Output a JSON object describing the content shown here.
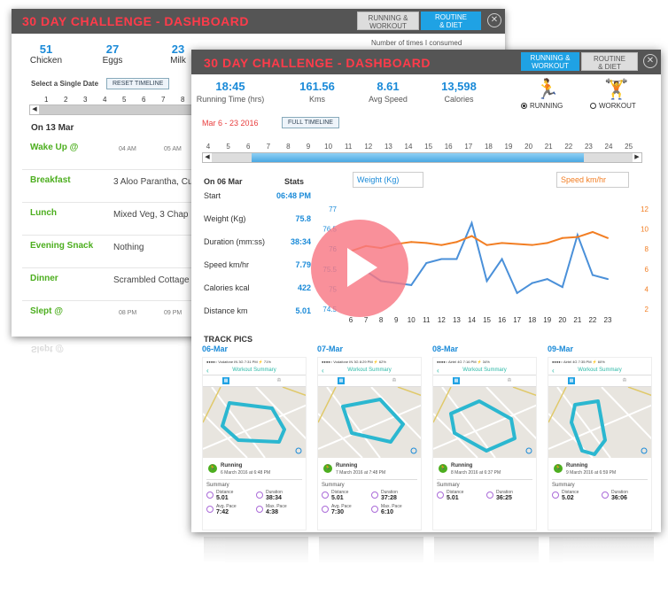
{
  "back": {
    "title": "30 DAY CHALLENGE - DASHBOARD",
    "toggle": {
      "running": "RUNNING &\nWORKOUT",
      "routine": "ROUTINE\n& DIET"
    },
    "close": "✕",
    "counts": [
      {
        "value": "51",
        "label": "Chicken"
      },
      {
        "value": "27",
        "label": "Eggs"
      },
      {
        "value": "23",
        "label": "Milk"
      }
    ],
    "consumed_label": "Number of times I consumed",
    "select_date": "Select a Single Date",
    "reset_button": "RESET TIMELINE",
    "timeline_numbers": [
      "1",
      "2",
      "3",
      "4",
      "5",
      "6",
      "7",
      "8"
    ],
    "date_heading": "On 13 Mar",
    "meals": [
      {
        "name": "Wake Up @",
        "value": "",
        "time1": "04 AM",
        "time2": "05 AM"
      },
      {
        "name": "Breakfast",
        "value": "3 Aloo Parantha, Cu"
      },
      {
        "name": "Lunch",
        "value": "Mixed Veg, 3 Chap"
      },
      {
        "name": "Evening Snack",
        "value": "Nothing"
      },
      {
        "name": "Dinner",
        "value": "Scrambled Cottage"
      },
      {
        "name": "Slept @",
        "value": "",
        "time1": "08 PM",
        "time2": "09 PM"
      }
    ],
    "reflected_label": "Slept @"
  },
  "front": {
    "title": "30 DAY CHALLENGE - DASHBOARD",
    "toggle": {
      "running": "RUNNING &\nWORKOUT",
      "routine": "ROUTINE\n& DIET"
    },
    "close": "✕",
    "stats": [
      {
        "value": "18:45",
        "label": "Running Time (hrs)"
      },
      {
        "value": "161.56",
        "label": "Kms"
      },
      {
        "value": "8.61",
        "label": "Avg Speed"
      },
      {
        "value": "13,598",
        "label": "Calories"
      }
    ],
    "modes": {
      "running": "RUNNING",
      "workout": "WORKOUT",
      "running_icon": "runner-icon",
      "workout_icon": "weightlifter-icon"
    },
    "date_range": "Mar 6 - 23 2016",
    "full_timeline_button": "FULL TIMELINE",
    "timeline_numbers": [
      "4",
      "5",
      "6",
      "7",
      "8",
      "9",
      "10",
      "11",
      "12",
      "13",
      "14",
      "15",
      "16",
      "17",
      "18",
      "19",
      "20",
      "21",
      "22",
      "23",
      "24",
      "25"
    ],
    "day_stats": {
      "heading": "On 06 Mar",
      "stats_heading": "Stats",
      "rows": [
        {
          "label": "Start",
          "value": "06:48 PM"
        },
        {
          "label": "Weight (Kg)",
          "value": "75.8"
        },
        {
          "label": "Duration (mm:ss)",
          "value": "38:34"
        },
        {
          "label": "Speed km/hr",
          "value": "7.79"
        },
        {
          "label": "Calories kcal",
          "value": "422"
        },
        {
          "label": "Distance km",
          "value": "5.01"
        }
      ]
    },
    "weight_selector": "Weight (Kg)",
    "speed_selector": "Speed km/hr",
    "track_pics_label": "TRACK PICS",
    "pics": [
      {
        "date": "06-Mar",
        "status": "●●●●○ Vodafone IN  3G    7:31 PM     ⚡ 71%",
        "title": "Workout Summary",
        "run_date": "6 March 2016 at 6:48 PM",
        "distance": "5.01",
        "duration": "38:34",
        "avg_pace": "7:42",
        "max_pace": "4:38"
      },
      {
        "date": "07-Mar",
        "status": "●●●●○ Vodafone IN  3G    8:29 PM     ⚡ 62%",
        "title": "Workout Summary",
        "run_date": "7 March 2016 at 7:48 PM",
        "distance": "5.01",
        "duration": "37:28",
        "avg_pace": "7:30",
        "max_pace": "6:10"
      },
      {
        "date": "08-Mar",
        "status": "●●●●○ Airtel  4G    7:16 PM    ⚡ 34%",
        "title": "Workout Summary",
        "run_date": "8 March 2016 at 6:37 PM",
        "distance": "5.01",
        "duration": "36:25"
      },
      {
        "date": "09-Mar",
        "status": "●●●●○ Airtel  4G    7:35 PM    ⚡ 60%",
        "title": "Workout Summary",
        "run_date": "9 March 2016 at 6:59 PM",
        "distance": "5.02",
        "duration": "36:06"
      }
    ],
    "pic_labels": {
      "running": "Running",
      "summary": "Summary",
      "distance": "Distance",
      "duration": "Duration",
      "avg_pace": "Avg. Pace",
      "max_pace": "Max. Pace",
      "unit_km": "km",
      "unit_min": "min/km"
    }
  },
  "colors": {
    "accent_red": "#ff3b4a",
    "blue": "#1a8ad8",
    "orange": "#f27e23",
    "green": "#4cae1e",
    "teal": "#29b8a6",
    "play": "#f87884"
  },
  "chart_data": {
    "type": "line",
    "x": [
      6,
      7,
      8,
      9,
      10,
      11,
      12,
      13,
      14,
      15,
      16,
      17,
      18,
      19,
      20,
      21,
      22,
      23
    ],
    "series": [
      {
        "name": "Weight (Kg)",
        "axis": "left",
        "color": "#4a90d9",
        "values": [
          75.8,
          75.45,
          75.2,
          75.15,
          75.1,
          75.65,
          75.75,
          75.75,
          76.65,
          75.2,
          75.75,
          74.9,
          75.15,
          75.25,
          75.05,
          76.35,
          75.35,
          75.25
        ]
      },
      {
        "name": "Speed km/hr",
        "axis": "right",
        "color": "#f27e23",
        "values": [
          7.79,
          8.3,
          8.1,
          8.5,
          8.7,
          8.6,
          8.4,
          8.7,
          9.3,
          8.4,
          8.6,
          8.5,
          8.4,
          8.6,
          9.1,
          9.2,
          9.7,
          9.1
        ]
      }
    ],
    "left_axis": {
      "ticks": [
        "77",
        "76.5",
        "76",
        "75.5",
        "75",
        "74.5"
      ],
      "ylim": [
        74.5,
        77
      ]
    },
    "right_axis": {
      "ticks": [
        "12",
        "10",
        "8",
        "6",
        "4",
        "2"
      ],
      "ylim": [
        2,
        12
      ]
    },
    "x_ticks": [
      "6",
      "7",
      "8",
      "9",
      "10",
      "11",
      "12",
      "13",
      "14",
      "15",
      "16",
      "17",
      "18",
      "19",
      "20",
      "21",
      "22",
      "23"
    ],
    "grid": false
  }
}
